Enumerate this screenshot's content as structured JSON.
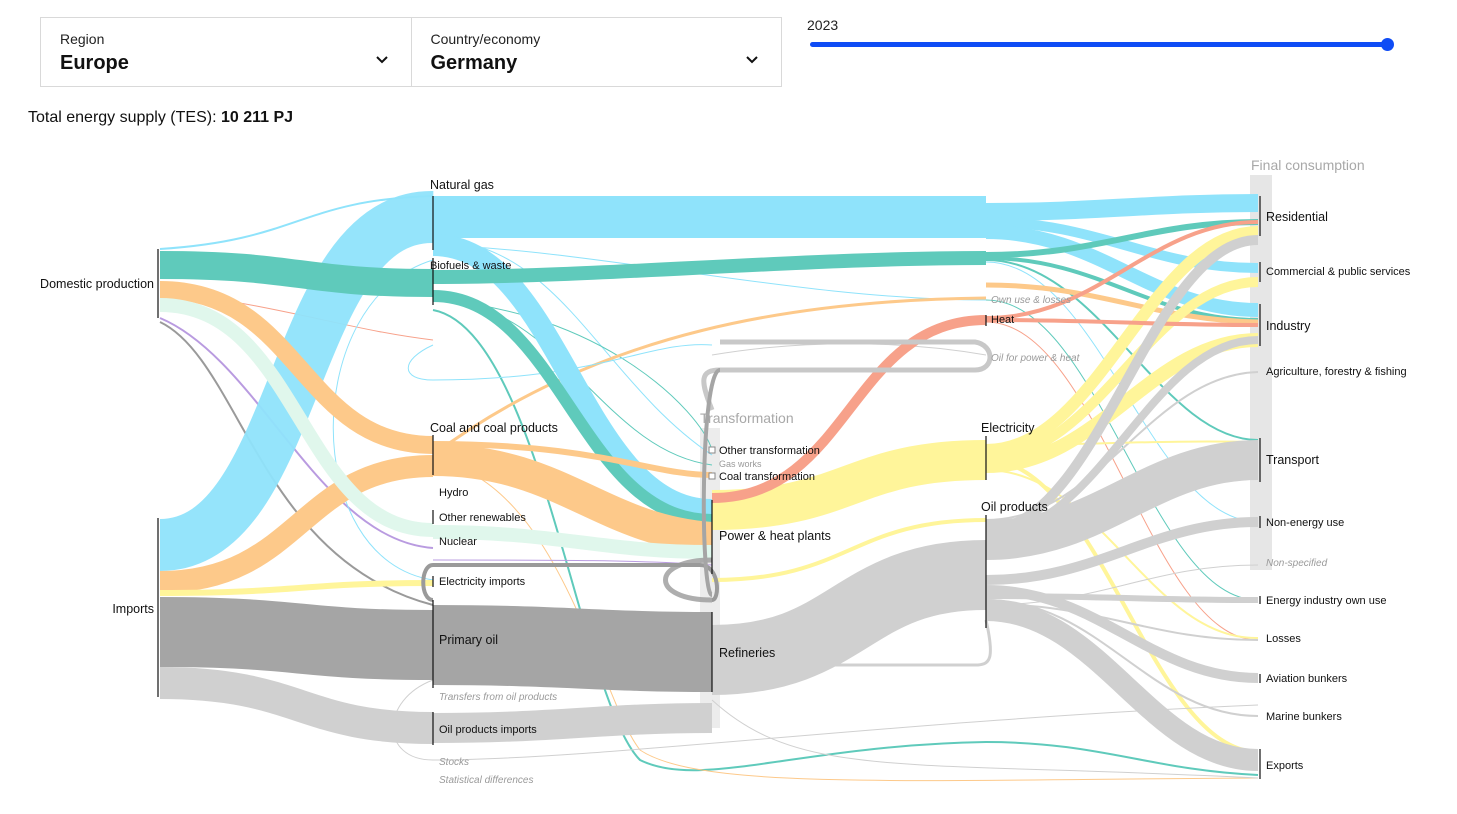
{
  "controls": {
    "region_label": "Region",
    "region_value": "Europe",
    "country_label": "Country/economy",
    "country_value": "Germany",
    "year": "2023",
    "year_position": 1.0
  },
  "summary": {
    "tes_label": "Total energy supply (TES):",
    "tes_value": "10 211 PJ"
  },
  "sankey": {
    "headers": {
      "transformation": "Transformation",
      "final": "Final consumption"
    },
    "sources": {
      "domestic": "Domestic production",
      "imports": "Imports"
    },
    "fuels": {
      "natural_gas": "Natural gas",
      "biofuels": "Biofuels & waste",
      "coal": "Coal and coal products",
      "hydro": "Hydro",
      "other_renewables": "Other renewables",
      "nuclear": "Nuclear",
      "electricity_imports": "Electricity imports",
      "primary_oil": "Primary oil",
      "transfers": "Transfers from oil products",
      "oil_products_imports": "Oil products imports",
      "stocks": "Stocks",
      "statistical_differences": "Statistical differences"
    },
    "transformation": {
      "other_transformation": "Other transformation",
      "gas_works": "Gas works",
      "coal_transformation": "Coal transformation",
      "power_heat": "Power & heat plants",
      "refineries": "Refineries"
    },
    "secondary": {
      "own_use": "Own use & losses",
      "heat": "Heat",
      "oil_power_heat": "Oil for power & heat",
      "electricity": "Electricity",
      "oil_products": "Oil products"
    },
    "final": {
      "residential": "Residential",
      "commercial": "Commercial & public services",
      "industry": "Industry",
      "agriculture": "Agriculture, forestry & fishing",
      "transport": "Transport",
      "non_energy": "Non-energy use",
      "non_specified": "Non-specified",
      "energy_own_use": "Energy industry own use",
      "losses": "Losses",
      "aviation": "Aviation bunkers",
      "marine": "Marine bunkers",
      "exports": "Exports"
    },
    "colors": {
      "natural_gas": "#8fe3fb",
      "biofuels": "#5fcabb",
      "coal": "#fdc98a",
      "hydro": "#9fe0c9",
      "other_renewables": "#e0f7ec",
      "nuclear": "#b99be0",
      "electricity": "#fff59a",
      "primary_oil": "#a5a5a5",
      "oil_products": "#d0d0d0",
      "heat": "#f7a18a",
      "slider": "#0f4cf5"
    }
  }
}
